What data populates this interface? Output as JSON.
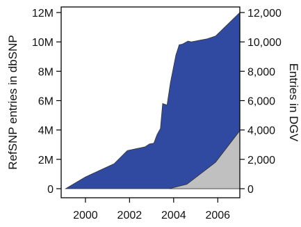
{
  "chart_data": {
    "type": "area",
    "title": "",
    "xlabel": "",
    "ylabel_left": "RefSNP entries in dbSNP",
    "ylabel_right": "Entries in DGV",
    "xlim": [
      1998.9,
      2007.0
    ],
    "ylim_left": [
      0,
      12000000
    ],
    "ylim_right": [
      0,
      12000
    ],
    "x_ticks": [
      2000,
      2002,
      2004,
      2006
    ],
    "x_tick_labels": [
      "2000",
      "2002",
      "2004",
      "2006"
    ],
    "y_left_ticks": [
      0,
      2000000,
      4000000,
      6000000,
      8000000,
      10000000,
      12000000
    ],
    "y_left_tick_labels": [
      "0",
      "2M",
      "4M",
      "6M",
      "8M",
      "10M",
      "12M"
    ],
    "y_right_ticks": [
      0,
      2000,
      4000,
      6000,
      8000,
      10000,
      12000
    ],
    "y_right_tick_labels": [
      "0",
      "2,000",
      "4,000",
      "6,000",
      "8,000",
      "10,000",
      "12,000"
    ],
    "grid": false,
    "series": [
      {
        "axis": "left",
        "color": "#2f4aa0",
        "x": [
          1999.1,
          2000.0,
          2001.3,
          2001.9,
          2002.7,
          2002.9,
          2003.1,
          2003.25,
          2003.4,
          2003.5,
          2003.7,
          2003.85,
          2004.1,
          2004.25,
          2004.4,
          2004.65,
          2004.8,
          2005.5,
          2005.9,
          2007.0
        ],
        "values": [
          0,
          800000,
          1700000,
          2600000,
          2850000,
          3050000,
          3100000,
          3700000,
          4100000,
          5800000,
          5700000,
          7200000,
          9100000,
          9800000,
          9850000,
          10050000,
          10000000,
          10200000,
          10400000,
          12000000
        ]
      },
      {
        "axis": "right",
        "color": "#c0c0c0",
        "x": [
          2003.8,
          2004.6,
          2005.9,
          2007.0
        ],
        "values": [
          0,
          300,
          1800,
          3950
        ]
      }
    ]
  }
}
